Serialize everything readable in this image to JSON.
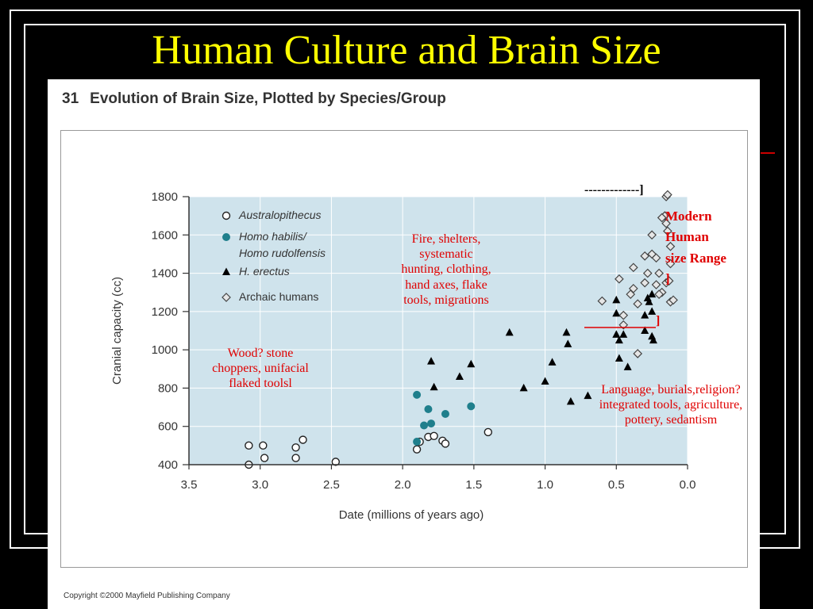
{
  "slide": {
    "title": "Human Culture and Brain Size"
  },
  "figure": {
    "number": "31",
    "heading": "Evolution of Brain Size, Plotted by Species/Group",
    "copyright": "Copyright ©2000 Mayfield Publishing Company"
  },
  "annotations": {
    "oldowan": "Wood? stone choppers, unifacial flaked toolsl",
    "erectus": "Fire, shelters, systematic hunting, clothing, hand axes, flake tools, migrations",
    "archaic": "Language, burials,religion? integrated tools, agriculture, pottery, sedantism",
    "bracket_top": "-------------]",
    "bracket_bottom": "]",
    "modern_human": "Modern Human size Range ]"
  },
  "colors": {
    "title": "#ffff00",
    "annotation": "#e00000",
    "plot_bg": "#cfe3ec",
    "teal": "#1f7f8c",
    "black_marker": "#000000"
  },
  "chart_data": {
    "type": "scatter",
    "title": "Evolution of Brain Size, Plotted by Species/Group",
    "xlabel": "Date (millions of years ago)",
    "ylabel": "Cranial capacity (cc)",
    "xlim": [
      3.5,
      0.0
    ],
    "ylim": [
      400,
      1800
    ],
    "x_reversed": true,
    "xticks": [
      "3.5",
      "3.0",
      "2.5",
      "2.0",
      "1.5",
      "1.0",
      "0.5",
      "0.0"
    ],
    "yticks": [
      "1800",
      "1600",
      "1400",
      "1200",
      "1000",
      "800",
      "600",
      "400"
    ],
    "legend": "top-left",
    "grid": true,
    "series": [
      {
        "name": "Australopithecus",
        "marker": "open-circle",
        "points": [
          [
            3.08,
            500
          ],
          [
            2.98,
            500
          ],
          [
            3.08,
            400
          ],
          [
            2.97,
            435
          ],
          [
            2.75,
            435
          ],
          [
            2.75,
            490
          ],
          [
            2.7,
            530
          ],
          [
            2.47,
            415
          ],
          [
            1.9,
            480
          ],
          [
            1.88,
            520
          ],
          [
            1.82,
            545
          ],
          [
            1.78,
            550
          ],
          [
            1.72,
            525
          ],
          [
            1.7,
            510
          ],
          [
            1.4,
            570
          ]
        ]
      },
      {
        "name": "Homo habilis/ Homo rudolfensis",
        "name_lines": [
          "Homo habilis/",
          "Homo rudolfensis"
        ],
        "marker": "filled-circle",
        "points": [
          [
            1.9,
            765
          ],
          [
            1.82,
            690
          ],
          [
            1.85,
            605
          ],
          [
            1.8,
            615
          ],
          [
            1.7,
            665
          ],
          [
            1.52,
            705
          ],
          [
            1.9,
            520
          ]
        ]
      },
      {
        "name": "H. erectus",
        "marker": "triangle",
        "points": [
          [
            1.8,
            940
          ],
          [
            1.78,
            805
          ],
          [
            1.6,
            860
          ],
          [
            1.52,
            925
          ],
          [
            1.25,
            1090
          ],
          [
            1.15,
            800
          ],
          [
            1.0,
            835
          ],
          [
            0.95,
            935
          ],
          [
            0.85,
            1090
          ],
          [
            0.84,
            1030
          ],
          [
            0.82,
            730
          ],
          [
            0.7,
            760
          ],
          [
            0.5,
            1260
          ],
          [
            0.5,
            1190
          ],
          [
            0.48,
            1050
          ],
          [
            0.48,
            955
          ],
          [
            0.45,
            1080
          ],
          [
            0.42,
            910
          ],
          [
            0.3,
            1180
          ],
          [
            0.28,
            1270
          ],
          [
            0.27,
            1250
          ],
          [
            0.25,
            1290
          ],
          [
            0.25,
            1200
          ],
          [
            0.25,
            1070
          ],
          [
            0.24,
            1050
          ],
          [
            0.3,
            1100
          ],
          [
            0.5,
            1080
          ]
        ]
      },
      {
        "name": "Archaic humans",
        "marker": "open-diamond",
        "points": [
          [
            0.6,
            1255
          ],
          [
            0.48,
            1370
          ],
          [
            0.45,
            1180
          ],
          [
            0.45,
            1130
          ],
          [
            0.4,
            1290
          ],
          [
            0.38,
            1430
          ],
          [
            0.38,
            1320
          ],
          [
            0.35,
            980
          ],
          [
            0.3,
            1350
          ],
          [
            0.3,
            1490
          ],
          [
            0.28,
            1400
          ],
          [
            0.25,
            1500
          ],
          [
            0.25,
            1600
          ],
          [
            0.22,
            1480
          ],
          [
            0.2,
            1400
          ],
          [
            0.18,
            1300
          ],
          [
            0.16,
            1700
          ],
          [
            0.15,
            1800
          ],
          [
            0.15,
            1660
          ],
          [
            0.14,
            1620
          ],
          [
            0.12,
            1540
          ],
          [
            0.12,
            1450
          ],
          [
            0.22,
            1340
          ],
          [
            0.2,
            1290
          ],
          [
            0.15,
            1350
          ],
          [
            0.12,
            1250
          ],
          [
            0.18,
            1690
          ],
          [
            0.14,
            1810
          ],
          [
            0.13,
            1360
          ],
          [
            0.1,
            1260
          ],
          [
            0.35,
            1240
          ]
        ]
      }
    ]
  }
}
